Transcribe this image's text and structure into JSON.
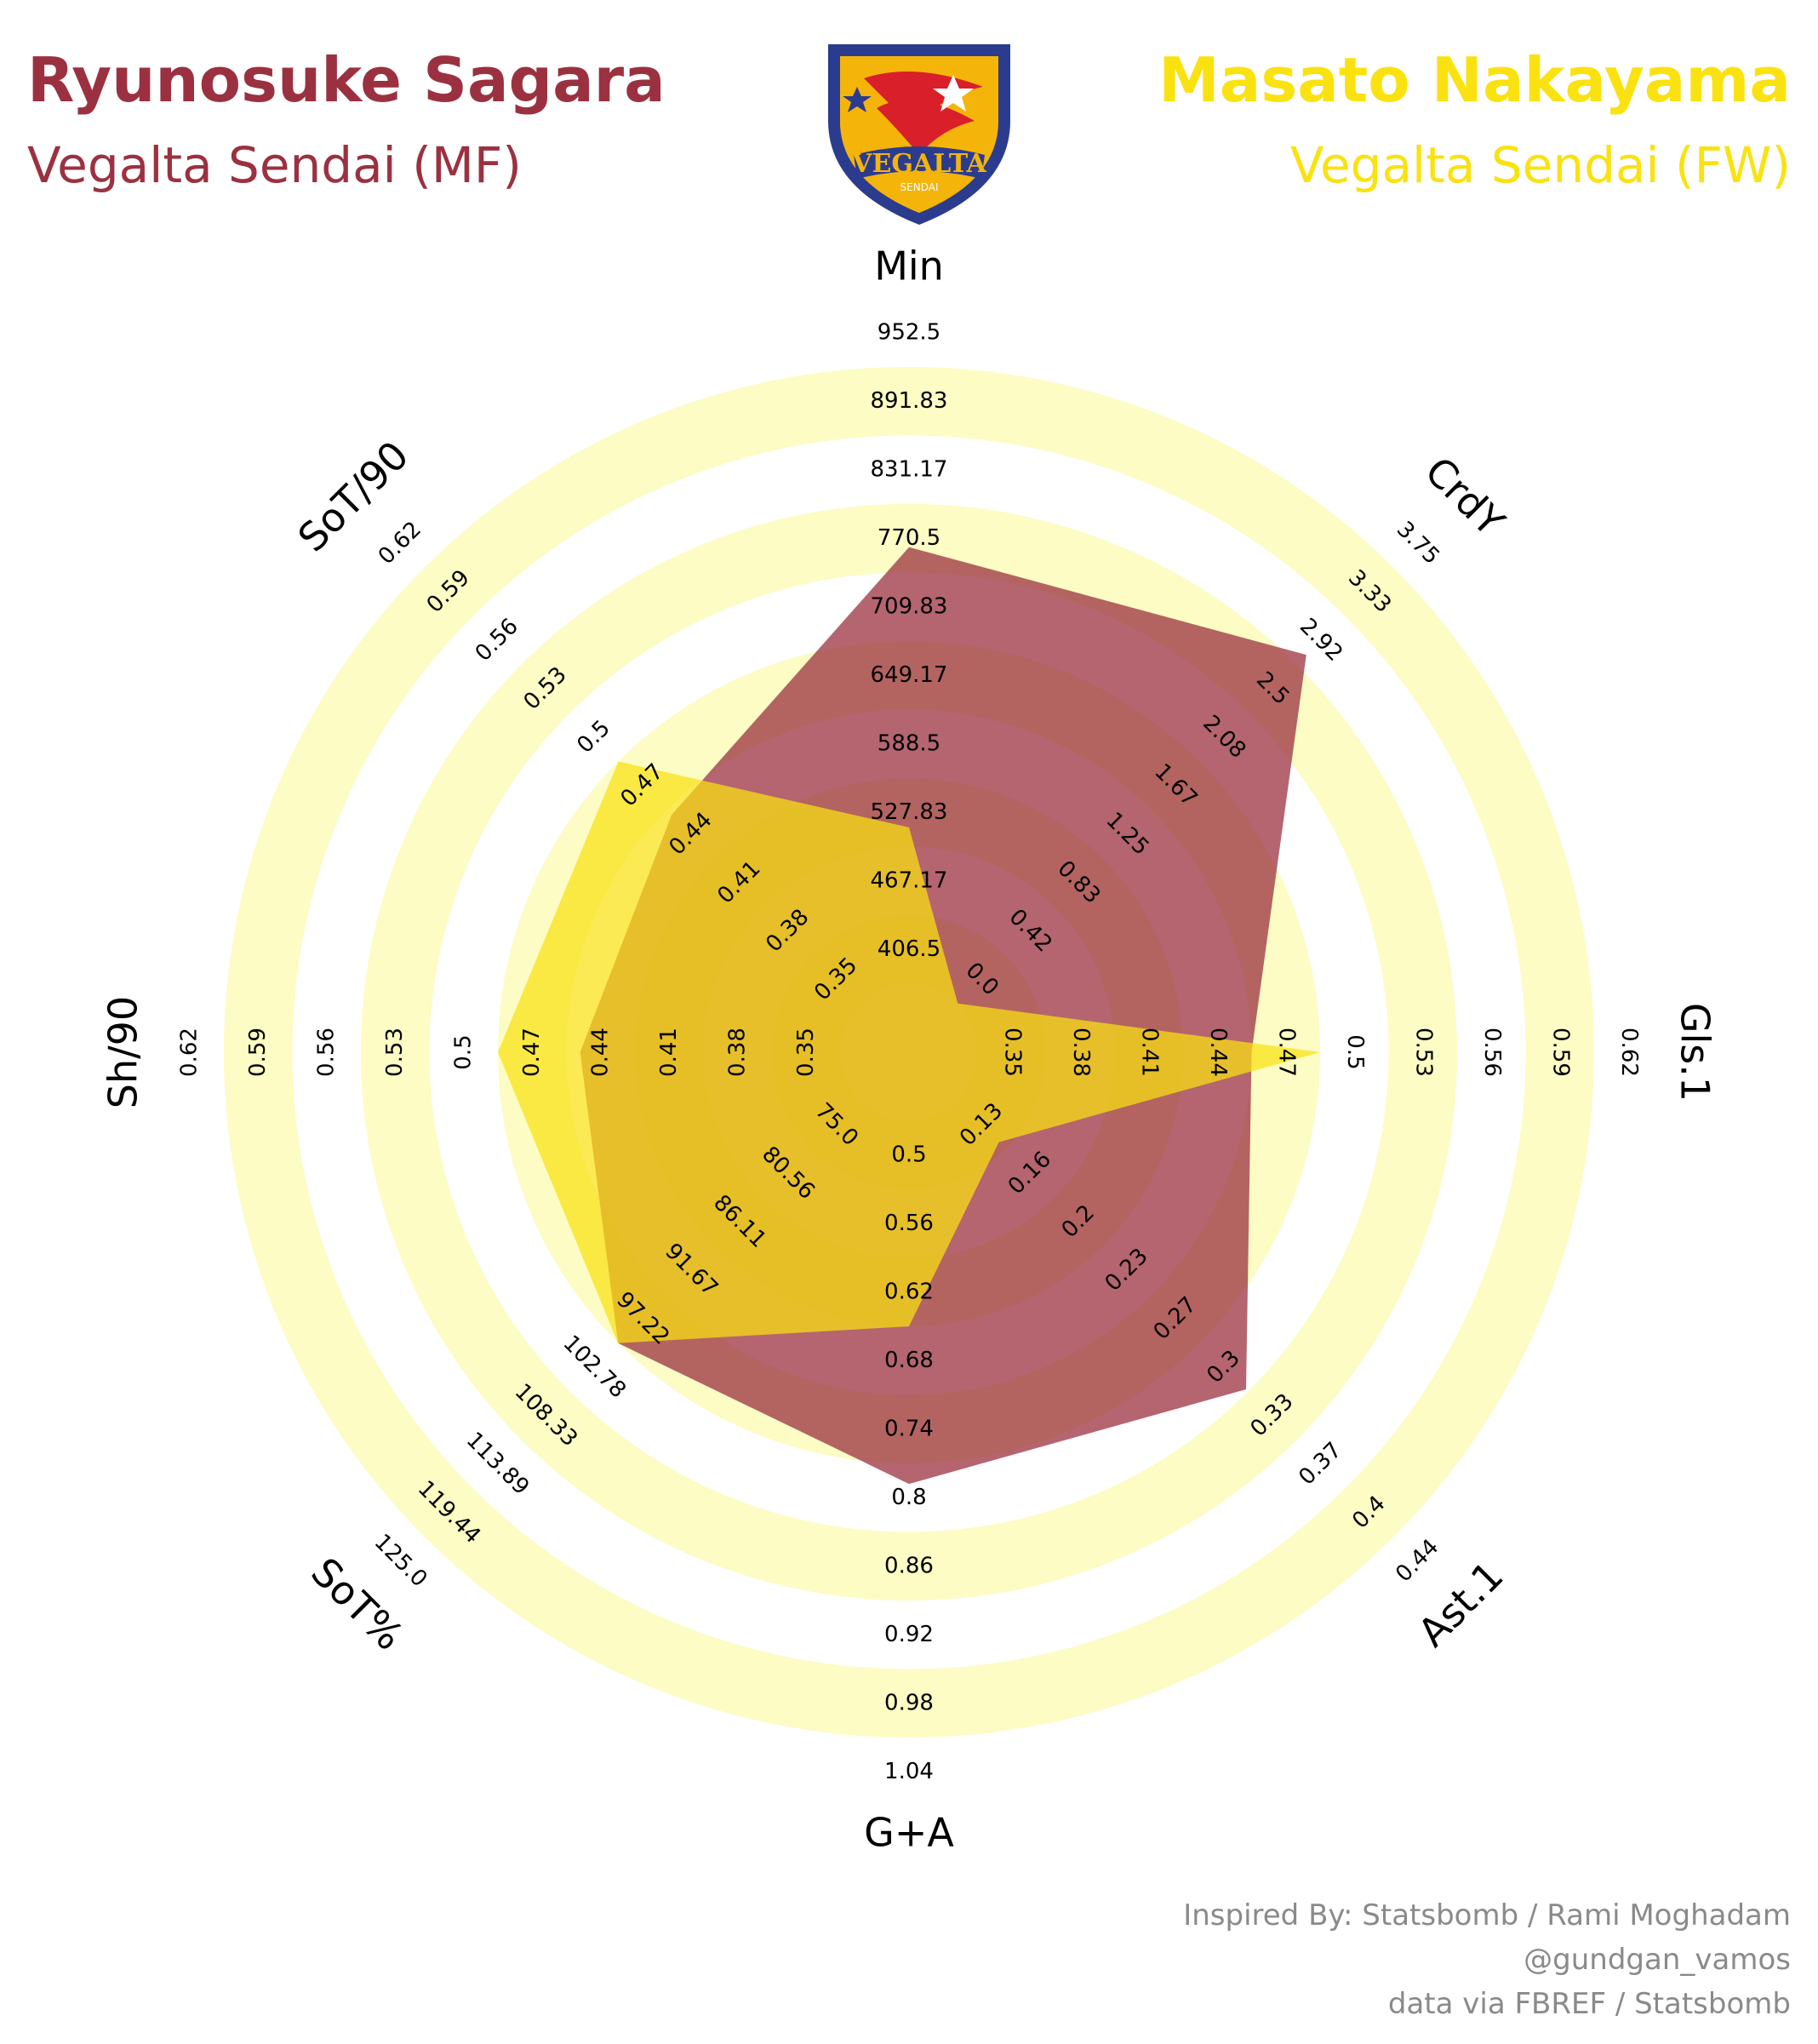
{
  "header": {
    "player1_name": "Ryunosuke Sagara",
    "player1_team": "Vegalta Sendai (MF)",
    "player2_name": "Masato Nakayama",
    "player2_team": "Vegalta Sendai (FW)",
    "logo_text": "VEGALTA",
    "logo_subtext": "SENDAI"
  },
  "footer": {
    "line1": "Inspired By: Statsbomb / Rami Moghadam",
    "line2": "@gundgan_vamos",
    "line3": "data via FBREF / Statsbomb"
  },
  "colors": {
    "player1": "#9b3140",
    "player2": "#fae210",
    "ring": "#fcfcc4",
    "label": "#000000",
    "credit": "#8a8a8a"
  },
  "chart_data": {
    "type": "radar",
    "title": "",
    "axes": [
      {
        "label": "Min",
        "ticks": [
          "406.5",
          "467.17",
          "527.83",
          "588.5",
          "649.17",
          "709.83",
          "770.5",
          "831.17",
          "891.83",
          "952.5"
        ],
        "range": [
          346,
          952.5
        ]
      },
      {
        "label": "CrdY",
        "ticks": [
          "0.0",
          "0.42",
          "0.83",
          "1.25",
          "1.67",
          "2.08",
          "2.5",
          "2.92",
          "3.33",
          "3.75"
        ],
        "range": [
          -0.42,
          3.75
        ]
      },
      {
        "label": "Gls.1",
        "ticks": [
          "0.35",
          "0.38",
          "0.41",
          "0.44",
          "0.47",
          "0.5",
          "0.53",
          "0.56",
          "0.59",
          "0.62"
        ],
        "range": [
          0.32,
          0.62
        ]
      },
      {
        "label": "Ast.1",
        "ticks": [
          "0.13",
          "0.16",
          "0.2",
          "0.23",
          "0.27",
          "0.3",
          "0.33",
          "0.37",
          "0.4",
          "0.44"
        ],
        "range": [
          0.095,
          0.44
        ]
      },
      {
        "label": "G+A",
        "ticks": [
          "0.5",
          "0.56",
          "0.62",
          "0.68",
          "0.74",
          "0.8",
          "0.86",
          "0.92",
          "0.98",
          "1.04"
        ],
        "range": [
          0.44,
          1.04
        ]
      },
      {
        "label": "SoT%",
        "ticks": [
          "75.0",
          "80.56",
          "86.11",
          "91.67",
          "97.22",
          "102.78",
          "108.33",
          "113.89",
          "119.44",
          "125.0"
        ],
        "range": [
          69.44,
          125.0
        ]
      },
      {
        "label": "Sh/90",
        "ticks": [
          "0.35",
          "0.38",
          "0.41",
          "0.44",
          "0.47",
          "0.5",
          "0.53",
          "0.56",
          "0.59",
          "0.62"
        ],
        "range": [
          0.32,
          0.62
        ]
      },
      {
        "label": "SoT/90",
        "ticks": [
          "0.35",
          "0.38",
          "0.41",
          "0.44",
          "0.47",
          "0.5",
          "0.53",
          "0.56",
          "0.59",
          "0.62"
        ],
        "range": [
          0.32,
          0.62
        ]
      }
    ],
    "series": [
      {
        "name": "Ryunosuke Sagara",
        "values": [
          793,
          3.0,
          0.47,
          0.335,
          0.818,
          102.8,
          0.464,
          0.467
        ]
      },
      {
        "name": "Masato Nakayama",
        "values": [
          545,
          0.0,
          0.5,
          0.159,
          0.68,
          102.8,
          0.5,
          0.5
        ]
      }
    ],
    "grid": true,
    "rings": 10
  }
}
